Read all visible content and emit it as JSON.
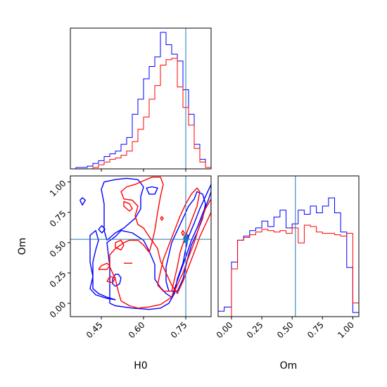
{
  "chart_data": {
    "type": "corner",
    "parameters": [
      "H0",
      "Om"
    ],
    "truth": {
      "H0": 0.75,
      "Om": 0.527
    },
    "colors": {
      "run_a": "#0000ff",
      "run_b": "#ff0000",
      "truth": "#1f77b4"
    },
    "xlabel_h0": "H0",
    "xlabel_om": "Om",
    "ylabel_om": "Om",
    "h0_range": [
      0.34,
      0.84
    ],
    "om_range": [
      -0.11,
      1.05
    ],
    "h0_ticks": [
      "0.45",
      "0.60",
      "0.75"
    ],
    "h0_tick_values": [
      0.45,
      0.6,
      0.75
    ],
    "om_ticks": [
      "0.00",
      "0.25",
      "0.50",
      "0.75",
      "1.00"
    ],
    "om_tick_values": [
      0.0,
      0.25,
      0.5,
      0.75,
      1.0
    ],
    "hist_h0": {
      "bin_edges": [
        0.34,
        0.36,
        0.38,
        0.4,
        0.42,
        0.44,
        0.46,
        0.48,
        0.5,
        0.52,
        0.54,
        0.56,
        0.58,
        0.6,
        0.62,
        0.64,
        0.66,
        0.68,
        0.7,
        0.72,
        0.74,
        0.76,
        0.78,
        0.8,
        0.82,
        0.84
      ],
      "series": [
        {
          "values": [
            0,
            0.01,
            0.01,
            0.02,
            0.04,
            0.06,
            0.09,
            0.11,
            0.13,
            0.18,
            0.23,
            0.4,
            0.51,
            0.66,
            0.75,
            0.82,
            1.0,
            0.91,
            0.84,
            0.79,
            0.58,
            0.4,
            0.18,
            0.07,
            0.01
          ]
        },
        {
          "values": [
            0,
            0,
            0,
            0,
            0.01,
            0.03,
            0.05,
            0.07,
            0.08,
            0.1,
            0.13,
            0.2,
            0.29,
            0.38,
            0.51,
            0.61,
            0.76,
            0.8,
            0.81,
            0.6,
            0.45,
            0.32,
            0.15,
            0.05,
            0.01
          ]
        }
      ]
    },
    "hist_om": {
      "bin_edges": [
        -0.11,
        -0.06,
        0.0,
        0.05,
        0.1,
        0.15,
        0.2,
        0.25,
        0.3,
        0.35,
        0.4,
        0.45,
        0.5,
        0.55,
        0.6,
        0.65,
        0.7,
        0.75,
        0.8,
        0.85,
        0.9,
        0.95,
        1.0,
        1.05
      ],
      "series": [
        {
          "values": [
            0.04,
            0.07,
            0.4,
            0.56,
            0.59,
            0.63,
            0.65,
            0.7,
            0.66,
            0.73,
            0.78,
            0.65,
            0.68,
            0.78,
            0.75,
            0.81,
            0.76,
            0.81,
            0.87,
            0.76,
            0.62,
            0.36,
            0.03
          ]
        },
        {
          "values": [
            0,
            0,
            0.35,
            0.56,
            0.58,
            0.6,
            0.62,
            0.64,
            0.63,
            0.62,
            0.63,
            0.61,
            0.65,
            0.54,
            0.67,
            0.66,
            0.62,
            0.61,
            0.61,
            0.6,
            0.59,
            0.61,
            0.1
          ]
        }
      ]
    },
    "contours": [
      {
        "series": 0,
        "points": [
          [
            0.48,
            0.0
          ],
          [
            0.5,
            -0.02
          ],
          [
            0.56,
            -0.04
          ],
          [
            0.62,
            -0.05
          ],
          [
            0.66,
            -0.04
          ],
          [
            0.69,
            0.0
          ],
          [
            0.71,
            0.08
          ],
          [
            0.72,
            0.2
          ],
          [
            0.74,
            0.33
          ],
          [
            0.75,
            0.45
          ],
          [
            0.76,
            0.55
          ],
          [
            0.78,
            0.66
          ],
          [
            0.8,
            0.78
          ],
          [
            0.82,
            0.88
          ],
          [
            0.84,
            0.98
          ],
          [
            0.84,
            0.92
          ],
          [
            0.83,
            0.85
          ],
          [
            0.81,
            0.74
          ],
          [
            0.79,
            0.62
          ],
          [
            0.77,
            0.52
          ],
          [
            0.75,
            0.38
          ],
          [
            0.73,
            0.25
          ],
          [
            0.71,
            0.12
          ],
          [
            0.7,
            0.05
          ],
          [
            0.68,
            0.08
          ],
          [
            0.66,
            0.13
          ],
          [
            0.64,
            0.2
          ],
          [
            0.64,
            0.32
          ],
          [
            0.62,
            0.43
          ],
          [
            0.6,
            0.52
          ],
          [
            0.56,
            0.58
          ],
          [
            0.52,
            0.6
          ],
          [
            0.5,
            0.55
          ],
          [
            0.47,
            0.5
          ],
          [
            0.48,
            0.3
          ],
          [
            0.48,
            0.1
          ],
          [
            0.48,
            0.0
          ]
        ]
      },
      {
        "series": 0,
        "points": [
          [
            0.47,
            0.52
          ],
          [
            0.46,
            0.6
          ],
          [
            0.46,
            0.72
          ],
          [
            0.46,
            0.82
          ],
          [
            0.45,
            0.94
          ],
          [
            0.46,
            1.0
          ],
          [
            0.5,
            1.02
          ],
          [
            0.54,
            1.03
          ],
          [
            0.58,
            1.02
          ],
          [
            0.6,
            0.96
          ],
          [
            0.59,
            0.88
          ],
          [
            0.59,
            0.78
          ],
          [
            0.57,
            0.7
          ],
          [
            0.55,
            0.66
          ],
          [
            0.53,
            0.62
          ],
          [
            0.5,
            0.58
          ],
          [
            0.47,
            0.52
          ]
        ]
      },
      {
        "series": 0,
        "points": [
          [
            0.41,
            0.5
          ],
          [
            0.41,
            0.56
          ],
          [
            0.43,
            0.6
          ],
          [
            0.44,
            0.52
          ],
          [
            0.43,
            0.44
          ],
          [
            0.42,
            0.34
          ],
          [
            0.42,
            0.24
          ],
          [
            0.42,
            0.12
          ],
          [
            0.44,
            0.08
          ],
          [
            0.47,
            0.05
          ],
          [
            0.5,
            0.03
          ],
          [
            0.47,
            0.04
          ],
          [
            0.43,
            0.07
          ],
          [
            0.41,
            0.12
          ],
          [
            0.42,
            0.22
          ],
          [
            0.41,
            0.34
          ],
          [
            0.41,
            0.5
          ]
        ]
      },
      {
        "series": 0,
        "points": [
          [
            0.61,
            0.95
          ],
          [
            0.63,
            0.96
          ],
          [
            0.65,
            0.95
          ],
          [
            0.64,
            0.9
          ],
          [
            0.62,
            0.9
          ],
          [
            0.61,
            0.95
          ]
        ]
      },
      {
        "series": 0,
        "points": [
          [
            0.374,
            0.85
          ],
          [
            0.383,
            0.81
          ],
          [
            0.393,
            0.85
          ],
          [
            0.383,
            0.87
          ],
          [
            0.374,
            0.85
          ]
        ]
      },
      {
        "series": 0,
        "points": [
          [
            0.44,
            0.61
          ],
          [
            0.452,
            0.58
          ],
          [
            0.463,
            0.61
          ],
          [
            0.452,
            0.64
          ],
          [
            0.44,
            0.61
          ]
        ]
      },
      {
        "series": 0,
        "points": [
          [
            0.5,
            0.14
          ],
          [
            0.515,
            0.16
          ],
          [
            0.52,
            0.21
          ],
          [
            0.51,
            0.24
          ],
          [
            0.5,
            0.24
          ],
          [
            0.49,
            0.2
          ],
          [
            0.49,
            0.16
          ],
          [
            0.5,
            0.14
          ]
        ]
      },
      {
        "series": 0,
        "points": [
          [
            0.69,
            0.1
          ],
          [
            0.72,
            0.1
          ],
          [
            0.74,
            0.2
          ],
          [
            0.75,
            0.3
          ],
          [
            0.76,
            0.4
          ],
          [
            0.77,
            0.48
          ],
          [
            0.79,
            0.58
          ],
          [
            0.81,
            0.7
          ],
          [
            0.82,
            0.82
          ],
          [
            0.81,
            0.9
          ],
          [
            0.79,
            0.92
          ],
          [
            0.78,
            0.86
          ],
          [
            0.76,
            0.8
          ],
          [
            0.74,
            0.7
          ],
          [
            0.72,
            0.6
          ],
          [
            0.7,
            0.5
          ],
          [
            0.69,
            0.4
          ],
          [
            0.68,
            0.3
          ],
          [
            0.68,
            0.18
          ],
          [
            0.69,
            0.1
          ]
        ]
      },
      {
        "series": 0,
        "points": [
          [
            0.745,
            0.5
          ],
          [
            0.755,
            0.52
          ],
          [
            0.758,
            0.56
          ],
          [
            0.75,
            0.57
          ],
          [
            0.743,
            0.54
          ],
          [
            0.745,
            0.5
          ]
        ]
      },
      {
        "series": 1,
        "points": [
          [
            0.52,
            0.02
          ],
          [
            0.55,
            -0.02
          ],
          [
            0.58,
            -0.04
          ],
          [
            0.62,
            -0.03
          ],
          [
            0.66,
            -0.01
          ],
          [
            0.7,
            0.05
          ],
          [
            0.72,
            0.15
          ],
          [
            0.74,
            0.25
          ],
          [
            0.76,
            0.38
          ],
          [
            0.78,
            0.5
          ],
          [
            0.8,
            0.65
          ],
          [
            0.82,
            0.78
          ],
          [
            0.84,
            0.86
          ],
          [
            0.84,
            0.75
          ],
          [
            0.82,
            0.65
          ],
          [
            0.8,
            0.55
          ],
          [
            0.78,
            0.42
          ],
          [
            0.76,
            0.3
          ],
          [
            0.74,
            0.18
          ],
          [
            0.72,
            0.08
          ],
          [
            0.7,
            0.15
          ],
          [
            0.68,
            0.25
          ],
          [
            0.66,
            0.35
          ],
          [
            0.65,
            0.45
          ],
          [
            0.62,
            0.55
          ],
          [
            0.6,
            0.62
          ],
          [
            0.58,
            0.65
          ],
          [
            0.57,
            0.72
          ],
          [
            0.58,
            0.8
          ],
          [
            0.56,
            0.85
          ],
          [
            0.53,
            0.86
          ],
          [
            0.52,
            0.92
          ],
          [
            0.54,
            0.96
          ],
          [
            0.57,
            0.98
          ],
          [
            0.6,
            1.01
          ],
          [
            0.63,
            1.04
          ],
          [
            0.66,
            1.04
          ],
          [
            0.67,
            0.98
          ],
          [
            0.66,
            0.88
          ],
          [
            0.65,
            0.75
          ],
          [
            0.64,
            0.6
          ],
          [
            0.63,
            0.5
          ],
          [
            0.62,
            0.42
          ],
          [
            0.6,
            0.48
          ],
          [
            0.58,
            0.52
          ],
          [
            0.55,
            0.52
          ],
          [
            0.53,
            0.5
          ],
          [
            0.5,
            0.45
          ],
          [
            0.48,
            0.4
          ],
          [
            0.48,
            0.3
          ],
          [
            0.5,
            0.2
          ],
          [
            0.51,
            0.1
          ],
          [
            0.52,
            0.02
          ]
        ]
      },
      {
        "series": 1,
        "points": [
          [
            0.65,
            0.15
          ],
          [
            0.67,
            0.1
          ],
          [
            0.7,
            0.1
          ],
          [
            0.71,
            0.2
          ],
          [
            0.72,
            0.3
          ],
          [
            0.73,
            0.42
          ],
          [
            0.75,
            0.56
          ],
          [
            0.77,
            0.68
          ],
          [
            0.79,
            0.8
          ],
          [
            0.8,
            0.92
          ],
          [
            0.79,
            0.95
          ],
          [
            0.77,
            0.9
          ],
          [
            0.75,
            0.82
          ],
          [
            0.73,
            0.72
          ],
          [
            0.71,
            0.6
          ],
          [
            0.69,
            0.48
          ],
          [
            0.67,
            0.36
          ],
          [
            0.66,
            0.26
          ],
          [
            0.65,
            0.15
          ]
        ]
      },
      {
        "series": 1,
        "points": [
          [
            0.44,
            0.28
          ],
          [
            0.45,
            0.31
          ],
          [
            0.47,
            0.33
          ],
          [
            0.48,
            0.31
          ],
          [
            0.47,
            0.28
          ],
          [
            0.44,
            0.28
          ]
        ]
      },
      {
        "series": 1,
        "points": [
          [
            0.5,
            0.5
          ],
          [
            0.52,
            0.52
          ],
          [
            0.53,
            0.48
          ],
          [
            0.52,
            0.44
          ],
          [
            0.5,
            0.46
          ],
          [
            0.5,
            0.5
          ]
        ]
      },
      {
        "series": 1,
        "points": [
          [
            0.47,
            0.18
          ],
          [
            0.48,
            0.22
          ],
          [
            0.5,
            0.21
          ],
          [
            0.49,
            0.17
          ],
          [
            0.47,
            0.18
          ]
        ]
      },
      {
        "series": 1,
        "points": [
          [
            0.53,
            0.84
          ],
          [
            0.55,
            0.82
          ],
          [
            0.56,
            0.78
          ],
          [
            0.55,
            0.76
          ],
          [
            0.53,
            0.8
          ],
          [
            0.53,
            0.84
          ]
        ]
      },
      {
        "series": 1,
        "points": [
          [
            0.66,
            0.7
          ],
          [
            0.665,
            0.715
          ],
          [
            0.67,
            0.7
          ],
          [
            0.665,
            0.685
          ],
          [
            0.66,
            0.7
          ]
        ]
      },
      {
        "series": 1,
        "points": [
          [
            0.735,
            0.58
          ],
          [
            0.74,
            0.6
          ],
          [
            0.745,
            0.58
          ],
          [
            0.74,
            0.56
          ],
          [
            0.735,
            0.58
          ]
        ]
      },
      {
        "series": 1,
        "points": [
          [
            0.53,
            0.33
          ],
          [
            0.56,
            0.33
          ]
        ]
      }
    ]
  }
}
